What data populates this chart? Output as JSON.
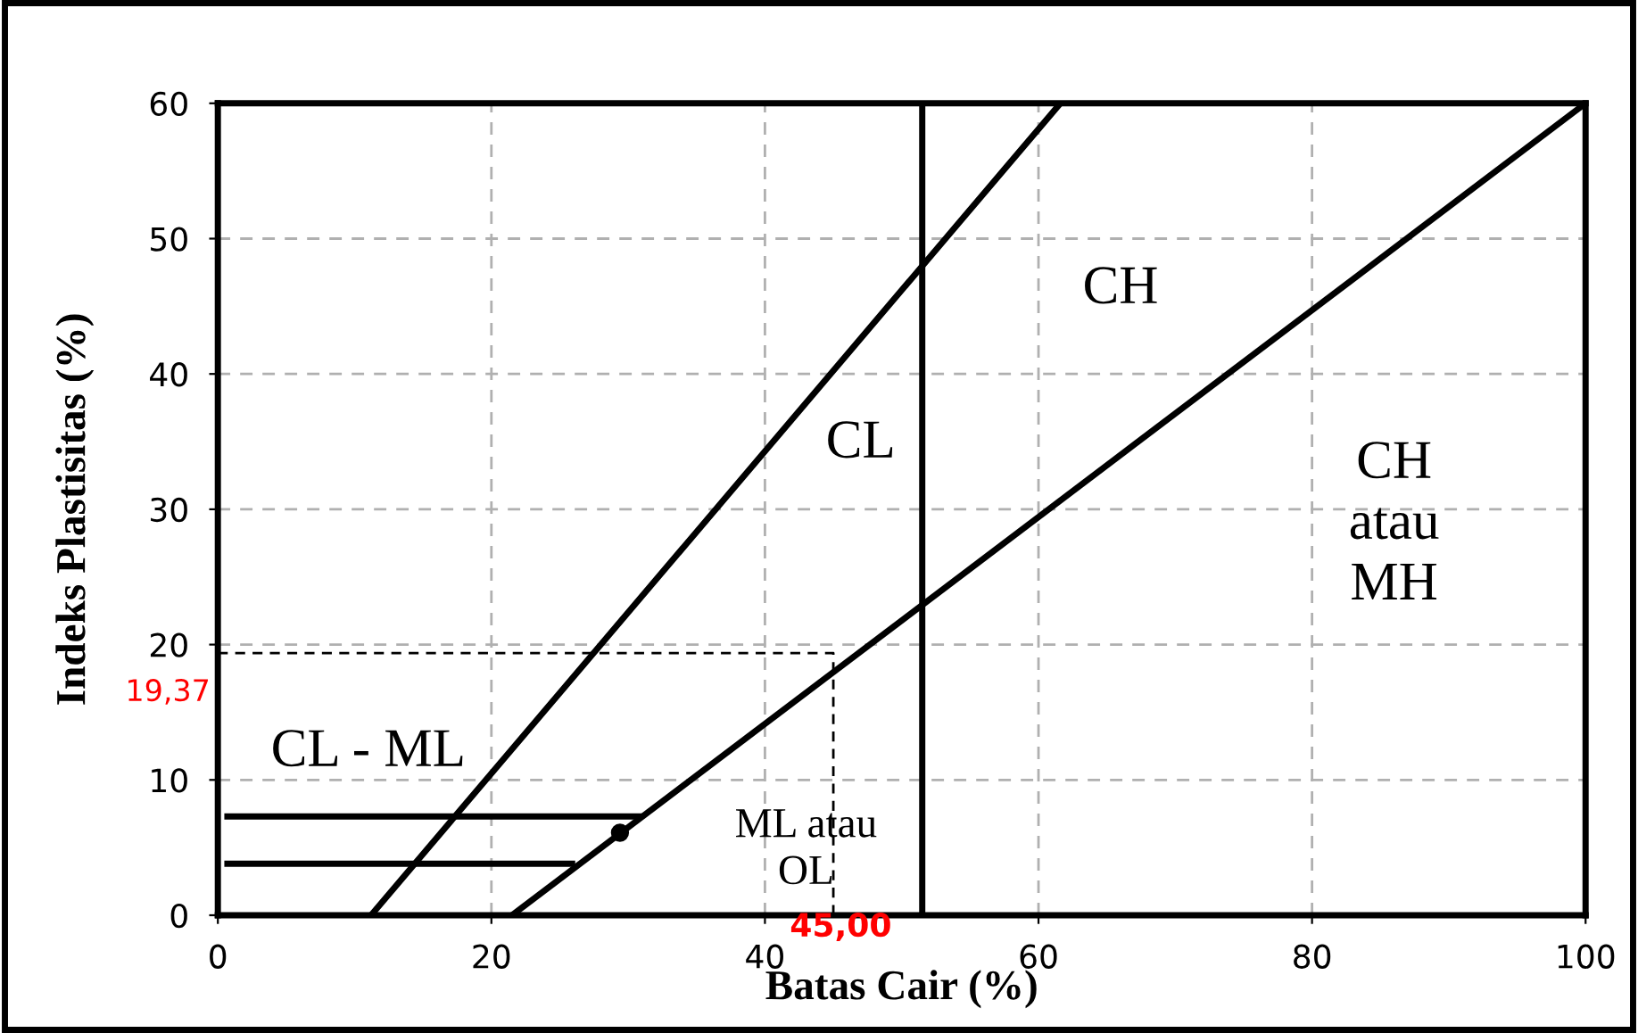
{
  "chart_data": {
    "type": "line",
    "xlabel": "Batas Cair (%)",
    "ylabel": "Indeks Plastisitas (%)",
    "xlim": [
      0,
      100
    ],
    "ylim": [
      0,
      60
    ],
    "xticks": [
      0,
      20,
      40,
      60,
      80,
      100
    ],
    "yticks": [
      0,
      10,
      20,
      30,
      40,
      50,
      60
    ],
    "grid": true,
    "legend": false,
    "series": [
      {
        "x": [
          11.2,
          61.6
        ],
        "values": [
          0,
          60
        ],
        "color": "#000000",
        "line_style": "solid"
      },
      {
        "x": [
          21.5,
          100
        ],
        "values": [
          0,
          60
        ],
        "color": "#000000",
        "line_style": "solid"
      },
      {
        "x": [
          51.5,
          51.5
        ],
        "values": [
          0,
          60
        ],
        "color": "#000000",
        "line_style": "solid"
      },
      {
        "x": [
          0.7,
          30.8
        ],
        "values": [
          7.3,
          7.3
        ],
        "color": "#000000",
        "line_style": "solid"
      },
      {
        "x": [
          0.7,
          25.9
        ],
        "values": [
          3.8,
          3.8
        ],
        "color": "#000000",
        "line_style": "solid"
      },
      {
        "x": [
          0,
          45,
          45
        ],
        "values": [
          19.37,
          19.37,
          0
        ],
        "color": "#000000",
        "line_style": "dashed"
      },
      {
        "type": "scatter",
        "x": [
          29.4
        ],
        "values": [
          6.1
        ],
        "color": "#000000",
        "marker": "circle"
      }
    ],
    "annotations": [
      {
        "text": "19,37",
        "x": 0,
        "y": 19.37
      },
      {
        "text": "45,00",
        "x": 45,
        "y": 0
      },
      "CH",
      "CL",
      "CH\natau\nMH",
      "CL - ML",
      "ML atau\nOL"
    ]
  }
}
